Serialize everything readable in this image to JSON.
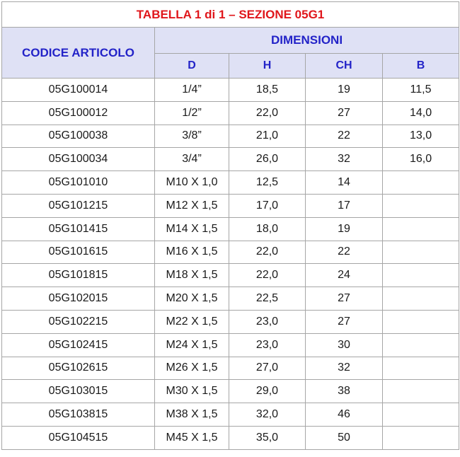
{
  "title": "TABELLA 1 di 1 – SEZIONE 05G1",
  "headers": {
    "code": "CODICE ARTICOLO",
    "dimensions": "DIMENSIONI",
    "d": "D",
    "h": "H",
    "ch": "CH",
    "b": "B"
  },
  "rows": [
    {
      "code": "05G100014",
      "d": "1/4”",
      "h": "18,5",
      "ch": "19",
      "b": "11,5"
    },
    {
      "code": "05G100012",
      "d": "1/2”",
      "h": "22,0",
      "ch": "27",
      "b": "14,0"
    },
    {
      "code": "05G100038",
      "d": "3/8”",
      "h": "21,0",
      "ch": "22",
      "b": "13,0"
    },
    {
      "code": "05G100034",
      "d": "3/4”",
      "h": "26,0",
      "ch": "32",
      "b": "16,0"
    },
    {
      "code": "05G101010",
      "d": "M10 X 1,0",
      "h": "12,5",
      "ch": "14",
      "b": ""
    },
    {
      "code": "05G101215",
      "d": "M12 X 1,5",
      "h": "17,0",
      "ch": "17",
      "b": ""
    },
    {
      "code": "05G101415",
      "d": "M14 X 1,5",
      "h": "18,0",
      "ch": "19",
      "b": ""
    },
    {
      "code": "05G101615",
      "d": "M16 X 1,5",
      "h": "22,0",
      "ch": "22",
      "b": ""
    },
    {
      "code": "05G101815",
      "d": "M18 X 1,5",
      "h": "22,0",
      "ch": "24",
      "b": ""
    },
    {
      "code": "05G102015",
      "d": "M20 X 1,5",
      "h": "22,5",
      "ch": "27",
      "b": ""
    },
    {
      "code": "05G102215",
      "d": "M22 X 1,5",
      "h": "23,0",
      "ch": "27",
      "b": ""
    },
    {
      "code": "05G102415",
      "d": "M24 X 1,5",
      "h": "23,0",
      "ch": "30",
      "b": ""
    },
    {
      "code": "05G102615",
      "d": "M26 X 1,5",
      "h": "27,0",
      "ch": "32",
      "b": ""
    },
    {
      "code": "05G103015",
      "d": "M30 X 1,5",
      "h": "29,0",
      "ch": "38",
      "b": ""
    },
    {
      "code": "05G103815",
      "d": "M38 X 1,5",
      "h": "32,0",
      "ch": "46",
      "b": ""
    },
    {
      "code": "05G104515",
      "d": "M45 X 1,5",
      "h": "35,0",
      "ch": "50",
      "b": ""
    }
  ]
}
